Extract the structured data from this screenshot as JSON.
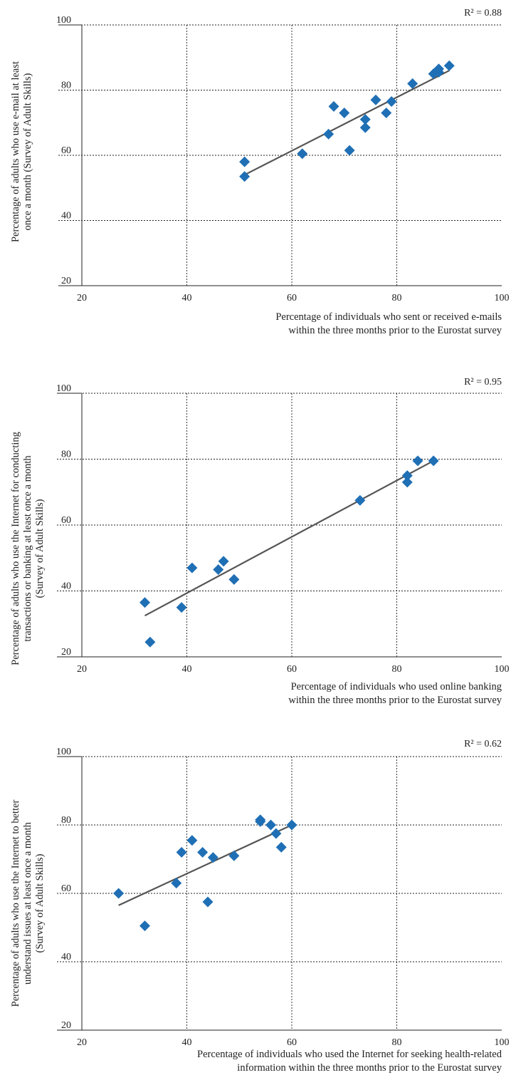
{
  "chart_data": [
    {
      "type": "scatter",
      "title": "",
      "r2_label": "R² = 0.88",
      "xlabel_lines": [
        "Percentage of individuals who sent or received e-mails",
        "within the three months prior to the Eurostat survey"
      ],
      "ylabel_lines": [
        "Percentage of adults who use e-mail at least",
        "once a month (Survey of Adult Skills)"
      ],
      "xlim": [
        20,
        100
      ],
      "ylim": [
        20,
        100
      ],
      "xticks": [
        "20",
        "40",
        "60",
        "80",
        "100"
      ],
      "yticks": [
        "20",
        "40",
        "60",
        "80",
        "100"
      ],
      "grid": true,
      "marker_color": "#1f6fb5",
      "trendline_color": "#555555",
      "trendline": {
        "x": [
          51,
          90
        ],
        "y": [
          54,
          86
        ]
      },
      "points": [
        {
          "x": 51,
          "y": 58
        },
        {
          "x": 51,
          "y": 53.5
        },
        {
          "x": 62,
          "y": 60.5
        },
        {
          "x": 67,
          "y": 66.5
        },
        {
          "x": 68,
          "y": 75
        },
        {
          "x": 70,
          "y": 73
        },
        {
          "x": 71,
          "y": 61.5
        },
        {
          "x": 74,
          "y": 71
        },
        {
          "x": 74,
          "y": 68.5
        },
        {
          "x": 76,
          "y": 77
        },
        {
          "x": 78,
          "y": 73
        },
        {
          "x": 79,
          "y": 76.5
        },
        {
          "x": 83,
          "y": 82
        },
        {
          "x": 87,
          "y": 85
        },
        {
          "x": 88,
          "y": 85.5
        },
        {
          "x": 88,
          "y": 86.5
        },
        {
          "x": 90,
          "y": 87.5
        }
      ]
    },
    {
      "type": "scatter",
      "title": "",
      "r2_label": "R² = 0.95",
      "xlabel_lines": [
        "Percentage of individuals who used online banking",
        "within  the three months prior to the Eurostat survey"
      ],
      "ylabel_lines": [
        "Percentage of adults who use the Internet for conducting",
        "transactions or banking at least once a month",
        "(Survey of Adult Skills)"
      ],
      "xlim": [
        20,
        100
      ],
      "ylim": [
        20,
        100
      ],
      "xticks": [
        "20",
        "40",
        "60",
        "80",
        "100"
      ],
      "yticks": [
        "20",
        "40",
        "60",
        "80",
        "100"
      ],
      "grid": true,
      "marker_color": "#1f6fb5",
      "trendline_color": "#555555",
      "trendline": {
        "x": [
          32,
          87
        ],
        "y": [
          32.5,
          79.5
        ]
      },
      "points": [
        {
          "x": 32,
          "y": 36.5
        },
        {
          "x": 33,
          "y": 24.5
        },
        {
          "x": 39,
          "y": 35
        },
        {
          "x": 41,
          "y": 47
        },
        {
          "x": 46,
          "y": 46.5
        },
        {
          "x": 47,
          "y": 49
        },
        {
          "x": 49,
          "y": 43.5
        },
        {
          "x": 73,
          "y": 67.5
        },
        {
          "x": 82,
          "y": 75
        },
        {
          "x": 82,
          "y": 73
        },
        {
          "x": 84,
          "y": 79.5
        },
        {
          "x": 87,
          "y": 79.5
        }
      ]
    },
    {
      "type": "scatter",
      "title": "",
      "r2_label": "R² = 0.62",
      "xlabel_lines": [
        "Percentage of individuals who used the Internet for seeking health-related",
        "information within the three months prior to the Eurostat survey"
      ],
      "ylabel_lines": [
        "Percentage of adults who use the Internet to better",
        "understand issues at least once a month",
        "(Survey of Adult Skills)"
      ],
      "xlim": [
        20,
        100
      ],
      "ylim": [
        20,
        100
      ],
      "xticks": [
        "20",
        "40",
        "60",
        "80",
        "100"
      ],
      "yticks": [
        "20",
        "40",
        "60",
        "80",
        "100"
      ],
      "grid": true,
      "marker_color": "#1f6fb5",
      "trendline_color": "#555555",
      "trendline": {
        "x": [
          27,
          60
        ],
        "y": [
          56.5,
          80
        ]
      },
      "points": [
        {
          "x": 27,
          "y": 60
        },
        {
          "x": 32,
          "y": 50.5
        },
        {
          "x": 38,
          "y": 63
        },
        {
          "x": 39,
          "y": 72
        },
        {
          "x": 41,
          "y": 75.5
        },
        {
          "x": 43,
          "y": 72
        },
        {
          "x": 44,
          "y": 57.5
        },
        {
          "x": 45,
          "y": 70.5
        },
        {
          "x": 49,
          "y": 71
        },
        {
          "x": 54,
          "y": 81.5
        },
        {
          "x": 54,
          "y": 81
        },
        {
          "x": 56,
          "y": 80
        },
        {
          "x": 57,
          "y": 77.5
        },
        {
          "x": 58,
          "y": 73.5
        },
        {
          "x": 60,
          "y": 80
        }
      ]
    }
  ]
}
